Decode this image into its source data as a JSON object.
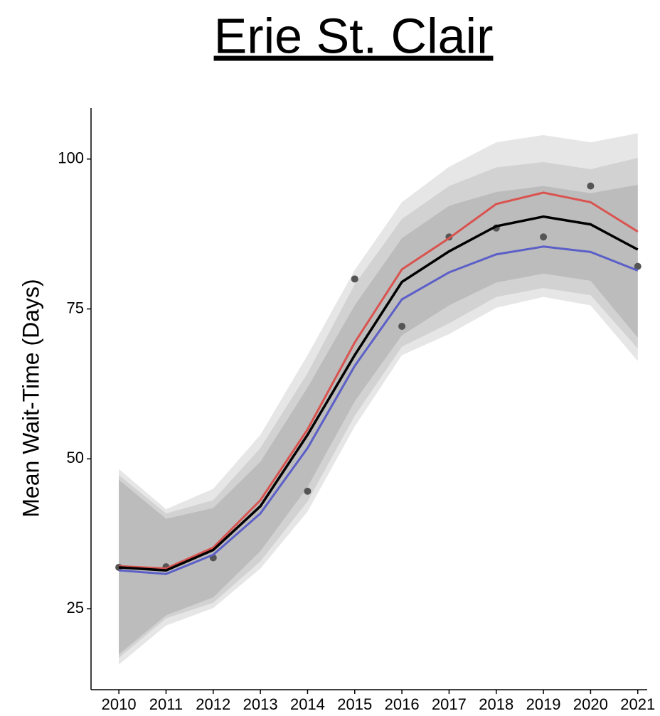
{
  "chart_data": {
    "type": "line",
    "title": "Erie St. Clair",
    "y_label": "Mean Wait-Time (Days)",
    "x": [
      2010,
      2011,
      2012,
      2013,
      2014,
      2015,
      2016,
      2017,
      2018,
      2019,
      2020,
      2021
    ],
    "xlim": [
      2009.41,
      2021.2
    ],
    "xticks": [
      2010,
      2011,
      2012,
      2013,
      2014,
      2015,
      2016,
      2017,
      2018,
      2019,
      2020,
      2021
    ],
    "ylim": [
      11.5,
      108.5
    ],
    "yticks": [
      25,
      50,
      75,
      100
    ],
    "bands": [
      {
        "color": "#e6e6e6",
        "lower": [
          15.7,
          22.2,
          25.1,
          31.7,
          41.2,
          55.4,
          67.3,
          70.8,
          75.2,
          77.0,
          75.6,
          66.3
        ],
        "upper": [
          48.3,
          41.6,
          45.0,
          54.0,
          67.3,
          81.5,
          92.8,
          98.7,
          102.8,
          104.0,
          102.8,
          104.3
        ]
      },
      {
        "color": "#d2d2d2",
        "lower": [
          16.8,
          23.4,
          26.0,
          32.9,
          42.9,
          57.2,
          68.7,
          72.6,
          77.0,
          78.5,
          77.3,
          68.4
        ],
        "upper": [
          47.3,
          40.9,
          43.1,
          51.8,
          64.3,
          79.1,
          90.0,
          95.5,
          98.6,
          99.5,
          98.3,
          100.2
        ]
      },
      {
        "color": "#bcbcbc",
        "lower": [
          17.4,
          23.9,
          26.9,
          34.6,
          45.3,
          59.6,
          70.6,
          75.6,
          79.4,
          80.9,
          79.7,
          70.2
        ],
        "upper": [
          46.5,
          40.0,
          41.8,
          49.5,
          61.9,
          75.6,
          86.8,
          92.2,
          94.5,
          95.5,
          94.3,
          95.7
        ]
      }
    ],
    "series": [
      {
        "color": "#d9534f",
        "values": [
          32.1,
          31.7,
          35.2,
          43.1,
          54.9,
          69.4,
          81.6,
          86.8,
          92.5,
          94.4,
          92.8,
          87.9
        ]
      },
      {
        "color": "#5b5fc7",
        "values": [
          31.4,
          30.8,
          34.0,
          40.9,
          51.8,
          65.5,
          76.6,
          81.1,
          84.1,
          85.4,
          84.5,
          81.4
        ]
      },
      {
        "color": "#000000",
        "values": [
          31.9,
          31.4,
          34.8,
          42.1,
          54.0,
          67.3,
          79.5,
          84.6,
          88.8,
          90.4,
          89.1,
          84.9
        ]
      }
    ],
    "points": {
      "color": "#555555",
      "x": [
        2010,
        2011,
        2012,
        2014,
        2015,
        2016,
        2017,
        2018,
        2019,
        2020,
        2021
      ],
      "values": [
        31.9,
        32.0,
        33.5,
        44.6,
        80.0,
        72.1,
        87.0,
        88.5,
        87.0,
        95.5,
        82.1
      ]
    }
  }
}
